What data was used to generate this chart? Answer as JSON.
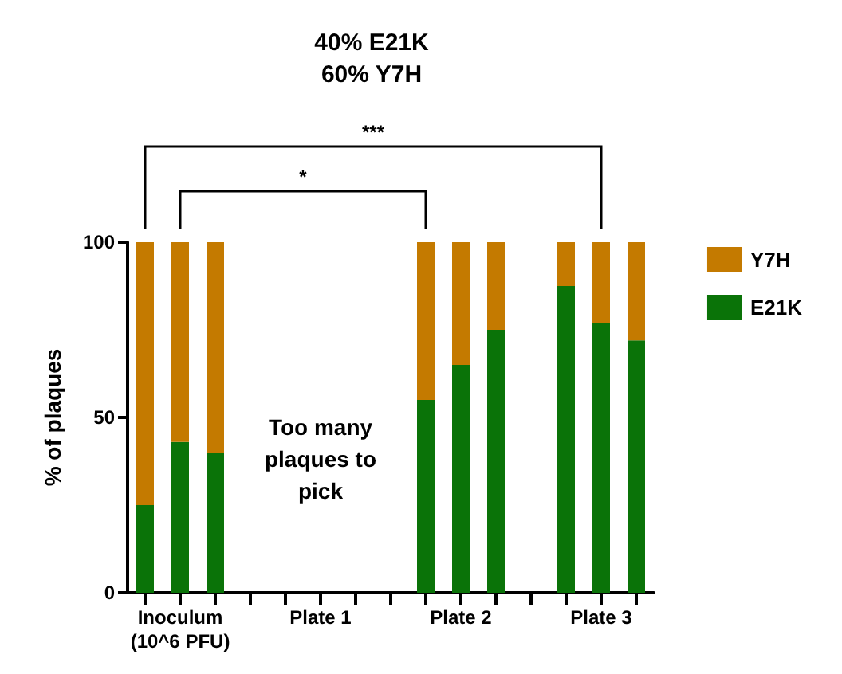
{
  "chart_data": {
    "type": "bar",
    "stacked": true,
    "title": "40% E21K\n60% Y7H",
    "ylabel": "% of plaques",
    "categories": [
      null,
      "Inoculum\n(10^6 PFU)",
      null,
      null,
      null,
      "Plate 1",
      null,
      null,
      null,
      "Plate 2",
      null,
      null,
      null,
      "Plate 3",
      null
    ],
    "series": [
      {
        "name": "E21K",
        "color": "#0a7308",
        "values": [
          25,
          43,
          40,
          null,
          null,
          null,
          null,
          null,
          55,
          65,
          75,
          null,
          87.5,
          77,
          72
        ]
      },
      {
        "name": "Y7H",
        "color": "#c47a00",
        "values": [
          75,
          57,
          60,
          null,
          null,
          null,
          null,
          null,
          45,
          35,
          25,
          null,
          12.5,
          23,
          28
        ]
      }
    ],
    "ylim": [
      0,
      100
    ],
    "yticks": [
      0,
      50,
      100
    ],
    "grid": false,
    "legend": "right",
    "annotations": [
      "***",
      "*",
      "Too many plaques to pick"
    ]
  }
}
